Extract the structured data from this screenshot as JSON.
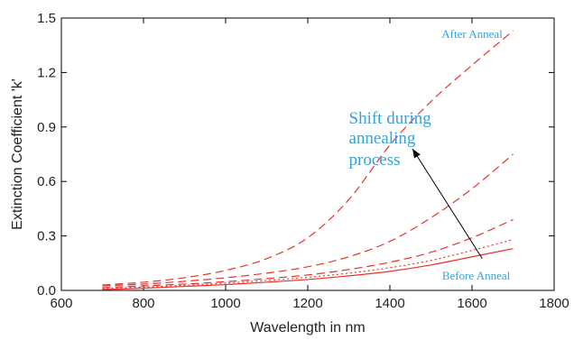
{
  "chart_data": {
    "type": "line",
    "title": "",
    "xlabel": "Wavelength in nm",
    "ylabel": "Extinction Coefficient 'k'",
    "xlim": [
      600,
      1800
    ],
    "ylim": [
      0,
      1.5
    ],
    "x_ticks": [
      600,
      800,
      1000,
      1200,
      1400,
      1600,
      1800
    ],
    "y_ticks": [
      0.0,
      0.3,
      0.6,
      0.9,
      1.2,
      1.5
    ],
    "y_tick_labels": [
      "0.0",
      "0.3",
      "0.6",
      "0.9",
      "1.2",
      "1.5"
    ],
    "grid": false,
    "legend": "none",
    "line_color": "#e8322a",
    "annotation_color": "#3aa0d8",
    "x": [
      700,
      800,
      900,
      1000,
      1100,
      1200,
      1300,
      1400,
      1500,
      1600,
      1700
    ],
    "series": [
      {
        "style": "solid",
        "values": [
          0.005,
          0.012,
          0.022,
          0.032,
          0.045,
          0.06,
          0.08,
          0.105,
          0.14,
          0.185,
          0.23
        ]
      },
      {
        "style": "dotted",
        "values": [
          0.01,
          0.018,
          0.028,
          0.04,
          0.055,
          0.072,
          0.095,
          0.125,
          0.165,
          0.22,
          0.28
        ]
      },
      {
        "style": "dashed",
        "values": [
          0.015,
          0.025,
          0.035,
          0.048,
          0.065,
          0.085,
          0.115,
          0.155,
          0.21,
          0.29,
          0.39
        ]
      },
      {
        "style": "dashed",
        "values": [
          0.025,
          0.035,
          0.05,
          0.07,
          0.095,
          0.13,
          0.185,
          0.27,
          0.4,
          0.56,
          0.75
        ]
      },
      {
        "style": "dashed",
        "values": [
          0.03,
          0.045,
          0.07,
          0.11,
          0.175,
          0.29,
          0.5,
          0.8,
          1.04,
          1.24,
          1.43
        ]
      }
    ],
    "annotations": [
      {
        "text": "After Anneal",
        "x": 1600,
        "y": 1.39
      },
      {
        "text": "Before Anneal",
        "x": 1610,
        "y": 0.06
      },
      {
        "text": "Shift during",
        "x": 1300,
        "y": 0.92
      },
      {
        "text": "annealing",
        "x": 1300,
        "y": 0.81
      },
      {
        "text": "process",
        "x": 1300,
        "y": 0.69
      }
    ],
    "arrow": {
      "from": [
        1625,
        0.175
      ],
      "to": [
        1455,
        0.78
      ]
    }
  }
}
